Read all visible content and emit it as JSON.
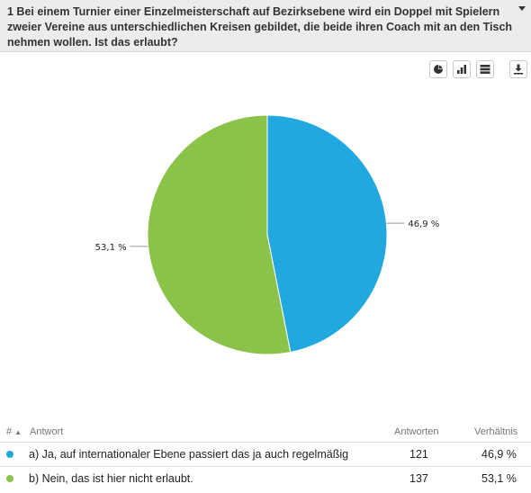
{
  "question": {
    "title": "1 Bei einem Turnier einer Einzelmeisterschaft auf Bezirksebene wird ein Doppel mit Spielern zweier Vereine aus unterschiedlichen Kreisen gebildet, die beide ihren Coach mit an den Tisch nehmen wollen. Ist das erlaubt?"
  },
  "toolbar": {
    "buttons": [
      "pie-chart-icon",
      "bar-chart-icon",
      "table-icon",
      "download-icon"
    ]
  },
  "chart_data": {
    "type": "pie",
    "categories": [
      "a) Ja, auf internationaler Ebene passiert das ja auch regelmäßig",
      "b) Nein, das ist hier nicht erlaubt."
    ],
    "values": [
      46.9,
      53.1
    ],
    "labels": [
      "46,9 %",
      "53,1 %"
    ],
    "colors": [
      "#21a8de",
      "#8bc34a"
    ]
  },
  "table": {
    "headers": {
      "num": "#",
      "answer": "Antwort",
      "count": "Antworten",
      "ratio": "Verhältnis"
    },
    "rows": [
      {
        "label": "a) Ja, auf internationaler Ebene passiert das ja auch regelmäßig",
        "count": "121",
        "ratio": "46,9 %",
        "color": "#21a8de"
      },
      {
        "label": "b) Nein, das ist hier nicht erlaubt.",
        "count": "137",
        "ratio": "53,1 %",
        "color": "#8bc34a"
      }
    ]
  }
}
